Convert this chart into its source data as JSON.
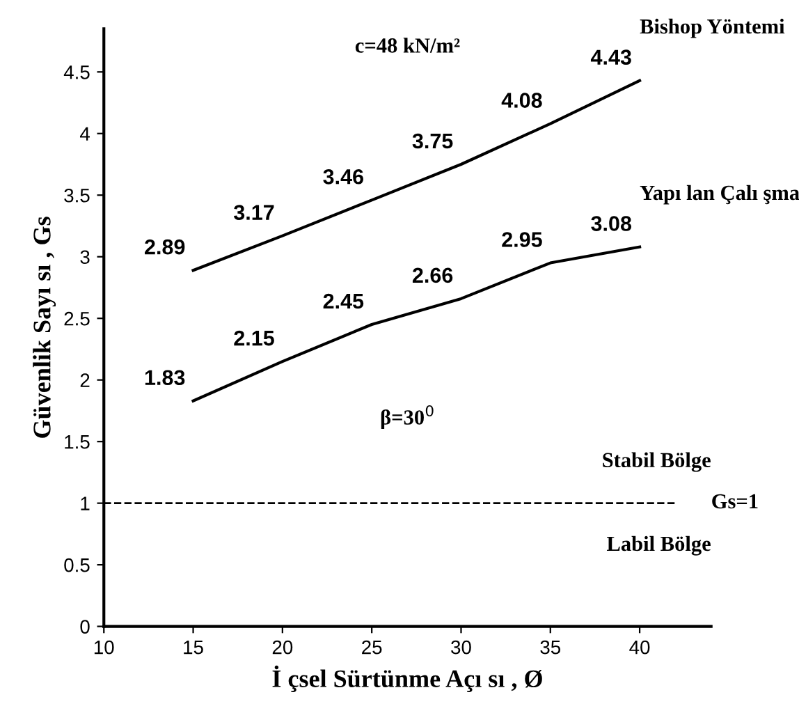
{
  "chart_data": {
    "type": "line",
    "xlabel": "İ çsel Sürtünme Açı sı , Ø",
    "ylabel": "Güvenlik Sayı sı , Gs",
    "x": [
      15,
      20,
      25,
      30,
      35,
      40
    ],
    "series": [
      {
        "name": "Bishop Yöntemi",
        "color": "#000000",
        "values": [
          2.89,
          3.17,
          3.46,
          3.75,
          4.08,
          4.43
        ]
      },
      {
        "name": "Yapı lan Çalı şma",
        "color": "#000000",
        "values": [
          1.83,
          2.15,
          2.45,
          2.66,
          2.95,
          3.08
        ]
      }
    ],
    "data_labels": true,
    "marker": "none",
    "line_style": "solid",
    "grid": false,
    "xlim": [
      10,
      44
    ],
    "ylim": [
      0,
      4.85
    ],
    "xticks": [
      10,
      15,
      20,
      25,
      30,
      35,
      40
    ],
    "yticks": [
      0,
      0.5,
      1,
      1.5,
      2,
      2.5,
      3,
      3.5,
      4,
      4.5
    ],
    "ref_lines": [
      {
        "axis": "y",
        "value": 1,
        "label": "Gs=1",
        "color": "#000000",
        "line_style": "dashed"
      }
    ],
    "annotations": [
      "c=48 kN/m²",
      "β=30$^{0}$",
      "Stabil Bölge",
      "Labil Bölge"
    ]
  }
}
